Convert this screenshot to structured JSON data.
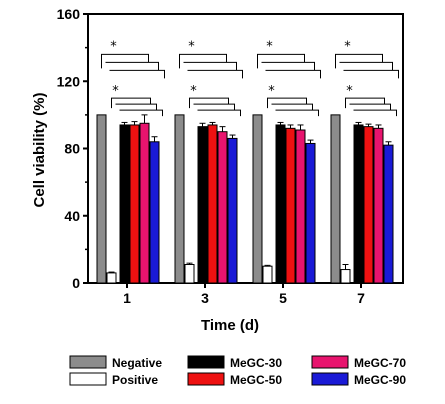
{
  "chart_data": {
    "type": "bar",
    "title": "",
    "xlabel": "Time (d)",
    "ylabel": "Cell viability (%)",
    "ylim": [
      0,
      160
    ],
    "yticks": [
      "0",
      "40",
      "80",
      "120",
      "160"
    ],
    "categories": [
      "1",
      "3",
      "5",
      "7"
    ],
    "significance_marker": "*",
    "legend_position": "bottom",
    "series": [
      {
        "name": "Negative",
        "color": "#8c8c8c",
        "values": [
          100,
          100,
          100,
          100
        ],
        "errors": [
          0,
          0,
          0,
          0
        ]
      },
      {
        "name": "Positive",
        "color": "#ffffff",
        "values": [
          6,
          11,
          10,
          8
        ],
        "errors": [
          0.5,
          0.8,
          0.5,
          3
        ]
      },
      {
        "name": "MeGC-30",
        "color": "#000000",
        "values": [
          94,
          93,
          94,
          94
        ],
        "errors": [
          1.5,
          2,
          1.5,
          1.5
        ]
      },
      {
        "name": "MeGC-50",
        "color": "#ee1111",
        "values": [
          94,
          94,
          92,
          93
        ],
        "errors": [
          2,
          1.5,
          2,
          1.5
        ]
      },
      {
        "name": "MeGC-70",
        "color": "#e8146e",
        "values": [
          95,
          90,
          91,
          92
        ],
        "errors": [
          5,
          3,
          3,
          2
        ]
      },
      {
        "name": "MeGC-90",
        "color": "#1a1ad6",
        "values": [
          84,
          86,
          83,
          82
        ],
        "errors": [
          3,
          2,
          2,
          2
        ]
      }
    ]
  }
}
